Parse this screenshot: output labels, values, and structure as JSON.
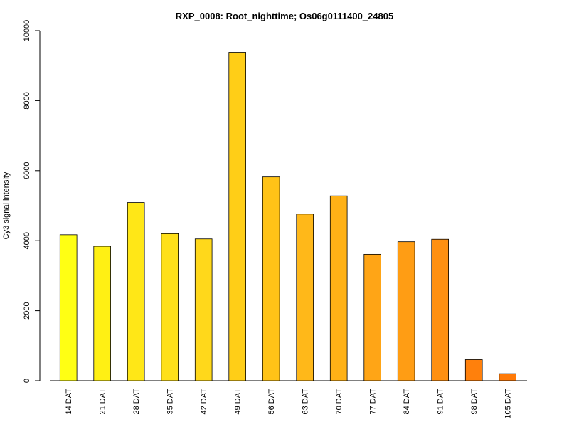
{
  "chart_data": {
    "type": "bar",
    "title": "RXP_0008: Root_nighttime; Os06g0111400_24805",
    "xlabel": "",
    "ylabel": "Cy3  signal intensity",
    "ylim": [
      0,
      10000
    ],
    "yticks": [
      0,
      2000,
      4000,
      6000,
      8000,
      10000
    ],
    "categories": [
      "14 DAT",
      "21 DAT",
      "28 DAT",
      "35 DAT",
      "42 DAT",
      "49 DAT",
      "56 DAT",
      "63 DAT",
      "70 DAT",
      "77 DAT",
      "84 DAT",
      "91 DAT",
      "98 DAT",
      "105 DAT"
    ],
    "values": [
      4170,
      3840,
      5090,
      4200,
      4050,
      9380,
      5820,
      4760,
      5280,
      3610,
      3970,
      4040,
      600,
      200
    ],
    "colors": [
      "#ffff14",
      "#fff014",
      "#ffe717",
      "#ffe019",
      "#ffd81b",
      "#ffce17",
      "#ffc317",
      "#ffb819",
      "#ffb116",
      "#ffa516",
      "#ff9d14",
      "#ff9011",
      "#ff800c",
      "#ff7a08"
    ],
    "grid": false,
    "legend": "none"
  }
}
